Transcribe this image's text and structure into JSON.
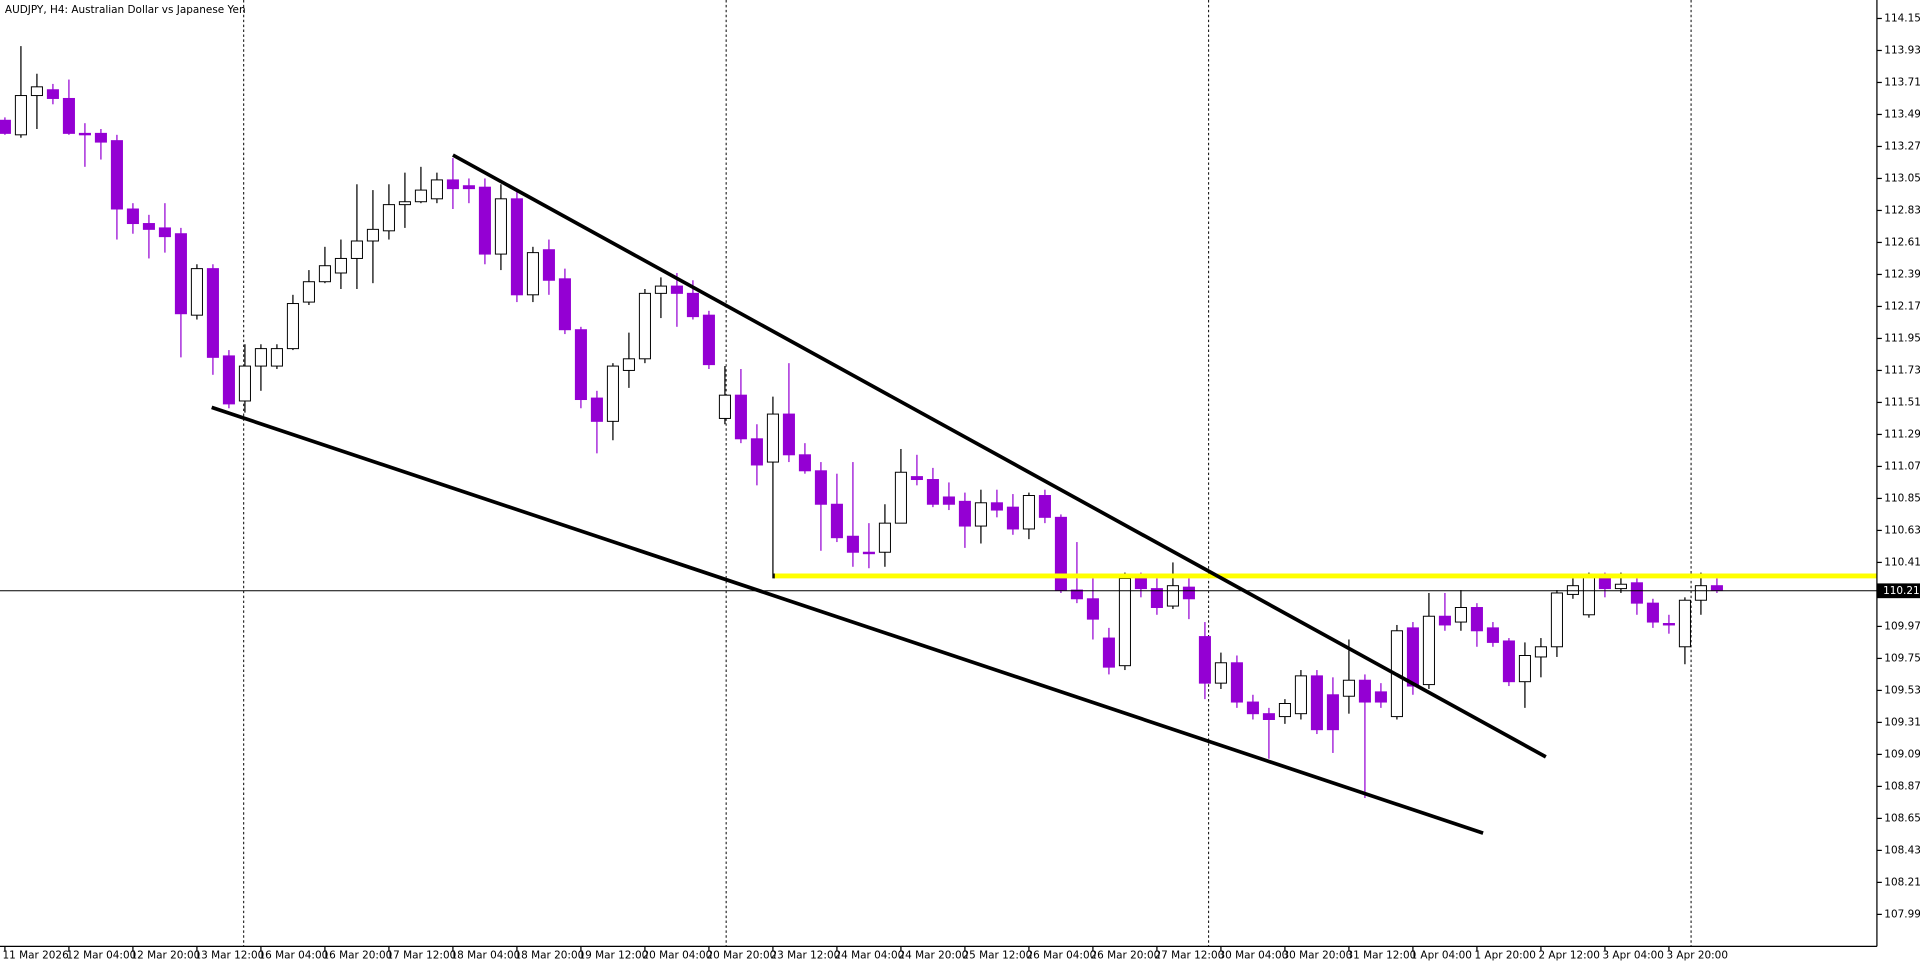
{
  "chart_data": {
    "type": "candlestick",
    "title": "AUDJPY, H4:  Australian Dollar vs Japanese Yen",
    "categories": [
      "11 Mar 2026",
      null,
      null,
      null,
      "12 Mar 04:00",
      null,
      null,
      null,
      "12 Mar 20:00",
      null,
      null,
      null,
      "13 Mar 12:00",
      null,
      null,
      null,
      "16 Mar 04:00",
      null,
      null,
      null,
      "16 Mar 20:00",
      null,
      null,
      null,
      "17 Mar 12:00",
      null,
      null,
      null,
      "18 Mar 04:00",
      null,
      null,
      null,
      "18 Mar 20:00",
      null,
      null,
      null,
      "19 Mar 12:00",
      null,
      null,
      null,
      "20 Mar 04:00",
      null,
      null,
      null,
      "20 Mar 20:00",
      null,
      null,
      null,
      "23 Mar 12:00",
      null,
      null,
      null,
      "24 Mar 04:00",
      null,
      null,
      null,
      "24 Mar 20:00",
      null,
      null,
      null,
      "25 Mar 12:00",
      null,
      null,
      null,
      "26 Mar 04:00",
      null,
      null,
      null,
      "26 Mar 20:00",
      null,
      null,
      null,
      "27 Mar 12:00",
      null,
      null,
      null,
      "30 Mar 04:00",
      null,
      null,
      null,
      "30 Mar 20:00",
      null,
      null,
      null,
      "31 Mar 12:00",
      null,
      null,
      null,
      "1 Apr 04:00",
      null,
      null,
      null,
      "1 Apr 20:00",
      null,
      null,
      null,
      "2 Apr 12:00",
      null,
      null,
      null,
      "3 Apr 04:00",
      null,
      null,
      null,
      "3 Apr 20:00",
      null,
      null,
      null
    ],
    "open": [
      113.45,
      113.35,
      113.62,
      113.66,
      113.6,
      113.36,
      113.36,
      113.31,
      112.84,
      112.74,
      112.71,
      112.67,
      112.11,
      112.43,
      111.83,
      111.52,
      111.76,
      111.76,
      111.88,
      112.2,
      112.34,
      112.4,
      112.5,
      112.62,
      112.69,
      112.87,
      112.89,
      112.91,
      113.04,
      113.0,
      112.99,
      112.53,
      112.91,
      112.25,
      112.56,
      112.36,
      112.01,
      111.54,
      111.38,
      111.73,
      111.81,
      112.26,
      112.31,
      112.26,
      112.11,
      111.4,
      111.56,
      111.26,
      111.1,
      111.43,
      111.15,
      111.04,
      110.81,
      110.59,
      110.48,
      110.48,
      110.68,
      111.0,
      110.98,
      110.86,
      110.83,
      110.66,
      110.82,
      110.79,
      110.64,
      110.87,
      110.72,
      110.22,
      110.16,
      109.89,
      109.7,
      110.3,
      110.23,
      110.11,
      110.24,
      109.9,
      109.58,
      109.72,
      109.45,
      109.37,
      109.35,
      109.37,
      109.63,
      109.5,
      109.49,
      109.6,
      109.52,
      109.35,
      109.96,
      109.57,
      110.04,
      110.0,
      110.1,
      109.96,
      109.87,
      109.59,
      109.76,
      109.83,
      110.19,
      110.05,
      110.32,
      110.23,
      110.27,
      110.13,
      109.99,
      109.83,
      110.15,
      110.25
    ],
    "high": [
      113.47,
      113.96,
      113.77,
      113.7,
      113.73,
      113.43,
      113.39,
      113.35,
      112.88,
      112.8,
      112.88,
      112.71,
      112.46,
      112.46,
      111.87,
      111.91,
      111.91,
      111.91,
      112.25,
      112.42,
      112.58,
      112.63,
      113.01,
      112.97,
      113.01,
      113.09,
      113.13,
      113.09,
      113.19,
      113.05,
      113.05,
      113.01,
      112.97,
      112.58,
      112.63,
      112.43,
      112.03,
      111.59,
      111.78,
      111.99,
      112.29,
      112.37,
      112.4,
      112.35,
      112.14,
      111.76,
      111.74,
      111.36,
      111.55,
      111.78,
      111.23,
      111.1,
      111.02,
      111.1,
      110.68,
      110.81,
      111.19,
      111.15,
      111.06,
      110.96,
      110.89,
      110.91,
      110.91,
      110.88,
      110.89,
      110.91,
      110.74,
      110.55,
      110.3,
      109.96,
      110.34,
      110.34,
      110.3,
      110.41,
      110.3,
      110.0,
      109.79,
      109.77,
      109.5,
      109.41,
      109.47,
      109.67,
      109.67,
      109.62,
      109.88,
      109.64,
      109.58,
      109.98,
      110.0,
      110.2,
      110.2,
      110.22,
      110.13,
      110.0,
      109.89,
      109.86,
      109.89,
      110.22,
      110.3,
      110.34,
      110.34,
      110.34,
      110.3,
      110.16,
      110.05,
      110.17,
      110.34,
      110.3
    ],
    "low": [
      113.35,
      113.33,
      113.39,
      113.56,
      113.35,
      113.13,
      113.18,
      112.63,
      112.67,
      112.5,
      112.54,
      111.82,
      112.08,
      111.7,
      111.47,
      111.44,
      111.59,
      111.74,
      111.87,
      112.18,
      112.33,
      112.29,
      112.29,
      112.33,
      112.63,
      112.71,
      112.88,
      112.88,
      112.84,
      112.88,
      112.46,
      112.42,
      112.2,
      112.2,
      112.25,
      111.98,
      111.47,
      111.16,
      111.25,
      111.61,
      111.78,
      112.09,
      112.03,
      112.08,
      111.74,
      111.36,
      111.23,
      110.94,
      110.3,
      111.1,
      111.02,
      110.49,
      110.55,
      110.38,
      110.37,
      110.38,
      110.68,
      110.94,
      110.79,
      110.77,
      110.51,
      110.54,
      110.72,
      110.6,
      110.57,
      110.68,
      110.2,
      110.13,
      109.88,
      109.64,
      109.67,
      110.17,
      110.05,
      110.09,
      110.02,
      109.47,
      109.54,
      109.41,
      109.33,
      109.06,
      109.3,
      109.33,
      109.23,
      109.1,
      109.37,
      108.79,
      109.41,
      109.33,
      109.5,
      109.54,
      109.94,
      109.94,
      109.83,
      109.83,
      109.56,
      109.41,
      109.62,
      109.76,
      110.16,
      110.03,
      110.17,
      110.2,
      110.05,
      109.96,
      109.92,
      109.71,
      110.05,
      110.2
    ],
    "close": [
      113.36,
      113.62,
      113.68,
      113.6,
      113.36,
      113.35,
      113.3,
      112.84,
      112.74,
      112.7,
      112.65,
      112.12,
      112.43,
      111.82,
      111.5,
      111.76,
      111.88,
      111.88,
      112.19,
      112.34,
      112.45,
      112.5,
      112.62,
      112.7,
      112.87,
      112.89,
      112.97,
      113.04,
      112.98,
      112.98,
      112.53,
      112.91,
      112.25,
      112.54,
      112.35,
      112.01,
      111.53,
      111.38,
      111.76,
      111.81,
      112.26,
      112.31,
      112.26,
      112.1,
      111.77,
      111.56,
      111.26,
      111.08,
      111.43,
      111.15,
      111.04,
      110.81,
      110.58,
      110.48,
      110.47,
      110.68,
      111.03,
      110.98,
      110.81,
      110.81,
      110.66,
      110.82,
      110.77,
      110.64,
      110.87,
      110.72,
      110.22,
      110.16,
      110.02,
      109.69,
      110.3,
      110.23,
      110.1,
      110.25,
      110.16,
      109.58,
      109.72,
      109.45,
      109.37,
      109.33,
      109.44,
      109.63,
      109.26,
      109.26,
      109.6,
      109.45,
      109.45,
      109.94,
      109.56,
      110.04,
      109.98,
      110.1,
      109.94,
      109.86,
      109.59,
      109.77,
      109.83,
      110.2,
      110.25,
      110.32,
      110.23,
      110.26,
      110.13,
      110.0,
      109.98,
      110.15,
      110.25,
      110.22
    ],
    "up_color": "#ffffff",
    "down_color": "#9400d3",
    "current_price": 110.215,
    "ylim": [
      107.77,
      114.277
    ],
    "yticks": [
      {
        "value": 114.15,
        "label": "114.150"
      },
      {
        "value": 113.93,
        "label": "113.930"
      },
      {
        "value": 113.71,
        "label": "113.710"
      },
      {
        "value": 113.49,
        "label": "113.490"
      },
      {
        "value": 113.27,
        "label": "113.270"
      },
      {
        "value": 113.05,
        "label": "113.050"
      },
      {
        "value": 112.83,
        "label": "112.830"
      },
      {
        "value": 112.61,
        "label": "112.610"
      },
      {
        "value": 112.39,
        "label": "112.390"
      },
      {
        "value": 112.17,
        "label": "112.170"
      },
      {
        "value": 111.95,
        "label": "111.950"
      },
      {
        "value": 111.73,
        "label": "111.730"
      },
      {
        "value": 111.51,
        "label": "111.510"
      },
      {
        "value": 111.29,
        "label": "111.290"
      },
      {
        "value": 111.07,
        "label": "111.070"
      },
      {
        "value": 110.85,
        "label": "110.850"
      },
      {
        "value": 110.63,
        "label": "110.630"
      },
      {
        "value": 110.41,
        "label": "110.410"
      },
      {
        "value": 109.97,
        "label": "109.970"
      },
      {
        "value": 109.75,
        "label": "109.750"
      },
      {
        "value": 109.53,
        "label": "109.530"
      },
      {
        "value": 109.31,
        "label": "109.310"
      },
      {
        "value": 109.09,
        "label": "109.090"
      },
      {
        "value": 108.87,
        "label": "108.870"
      },
      {
        "value": 108.65,
        "label": "108.650"
      },
      {
        "value": 108.43,
        "label": "108.430"
      },
      {
        "value": 108.21,
        "label": "108.210"
      },
      {
        "value": 107.99,
        "label": "107.990"
      }
    ],
    "grid": false
  }
}
